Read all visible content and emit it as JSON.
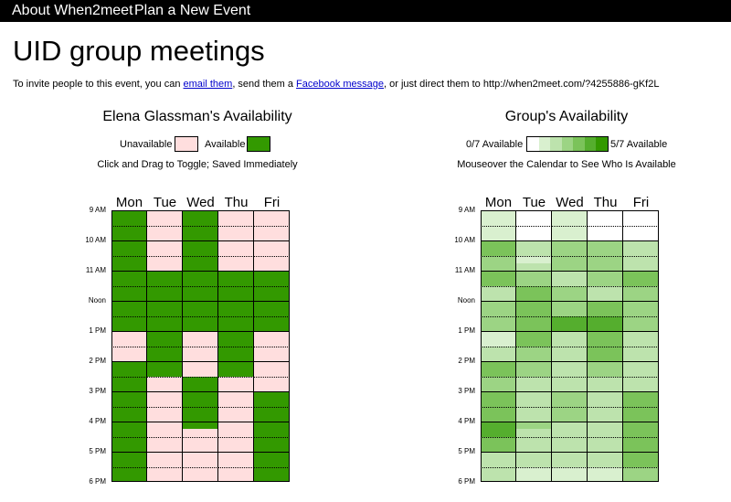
{
  "nav": {
    "about_label": "About When2meet",
    "plan_label": "Plan a New Event"
  },
  "event": {
    "title": "UID group meetings",
    "invite_prefix": "To invite people to this event, you can ",
    "email_link": "email them",
    "invite_mid": ", send them a ",
    "facebook_link": "Facebook message",
    "invite_suffix": ", or just direct them to http://when2meet.com/?4255886-gKf2L"
  },
  "colors": {
    "available": "#339900",
    "unavailable": "#ffdede",
    "group_scale": [
      "#ffffff",
      "#d9f0cf",
      "#bde3ad",
      "#9cd484",
      "#7bc35a",
      "#55ae2e",
      "#339900"
    ]
  },
  "my_availability": {
    "title": "Elena Glassman's Availability",
    "legend_unavailable": "Unavailable",
    "legend_available": "Available",
    "note": "Click and Drag to Toggle; Saved Immediately",
    "days": [
      "Mon",
      "Tue",
      "Wed",
      "Thu",
      "Fri"
    ],
    "time_labels": [
      "9 AM",
      "10 AM",
      "11 AM",
      "Noon",
      "1 PM",
      "2 PM",
      "3 PM",
      "4 PM",
      "5 PM",
      "6 PM"
    ],
    "grid": [
      [
        1,
        0,
        1,
        0,
        0
      ],
      [
        1,
        0,
        1,
        0,
        0
      ],
      [
        1,
        0,
        1,
        0,
        0
      ],
      [
        1,
        0,
        1,
        0,
        0
      ],
      [
        1,
        0,
        1,
        0,
        0
      ],
      [
        1,
        0,
        1,
        0,
        0
      ],
      [
        1,
        0,
        1,
        0,
        0
      ],
      [
        1,
        0,
        1,
        0,
        0
      ],
      [
        1,
        1,
        1,
        1,
        1
      ],
      [
        1,
        1,
        1,
        1,
        1
      ],
      [
        1,
        1,
        1,
        1,
        1
      ],
      [
        1,
        1,
        1,
        1,
        1
      ],
      [
        1,
        1,
        1,
        1,
        1
      ],
      [
        1,
        1,
        1,
        1,
        1
      ],
      [
        1,
        1,
        1,
        1,
        1
      ],
      [
        1,
        1,
        1,
        1,
        1
      ],
      [
        0,
        1,
        0,
        1,
        0
      ],
      [
        0,
        1,
        0,
        1,
        0
      ],
      [
        0,
        1,
        0,
        1,
        0
      ],
      [
        0,
        1,
        0,
        1,
        0
      ],
      [
        1,
        1,
        0,
        1,
        0
      ],
      [
        1,
        1,
        0,
        1,
        0
      ],
      [
        1,
        0,
        1,
        0,
        0
      ],
      [
        1,
        0,
        1,
        0,
        0
      ],
      [
        1,
        0,
        1,
        0,
        1
      ],
      [
        1,
        0,
        1,
        0,
        1
      ],
      [
        1,
        0,
        1,
        0,
        1
      ],
      [
        1,
        0,
        1,
        0,
        1
      ],
      [
        1,
        0,
        1,
        0,
        1
      ],
      [
        1,
        0,
        0,
        0,
        1
      ],
      [
        1,
        0,
        0,
        0,
        1
      ],
      [
        1,
        0,
        0,
        0,
        1
      ],
      [
        1,
        0,
        0,
        0,
        1
      ],
      [
        1,
        0,
        0,
        0,
        1
      ],
      [
        1,
        0,
        0,
        0,
        1
      ],
      [
        1,
        0,
        0,
        0,
        1
      ]
    ]
  },
  "group_availability": {
    "title": "Group's Availability",
    "legend_min": "0/7 Available",
    "legend_max": "5/7 Available",
    "note": "Mouseover the Calendar to See Who Is Available",
    "days": [
      "Mon",
      "Tue",
      "Wed",
      "Thu",
      "Fri"
    ],
    "time_labels": [
      "9 AM",
      "10 AM",
      "11 AM",
      "Noon",
      "1 PM",
      "2 PM",
      "3 PM",
      "4 PM",
      "5 PM",
      "6 PM"
    ],
    "grid": [
      [
        1,
        0,
        1,
        0,
        0
      ],
      [
        1,
        0,
        1,
        0,
        0
      ],
      [
        1,
        0,
        1,
        0,
        0
      ],
      [
        1,
        0,
        1,
        0,
        0
      ],
      [
        4,
        2,
        3,
        3,
        2
      ],
      [
        4,
        2,
        3,
        3,
        2
      ],
      [
        3,
        1,
        3,
        3,
        2
      ],
      [
        3,
        2,
        3,
        3,
        2
      ],
      [
        4,
        3,
        2,
        3,
        4
      ],
      [
        4,
        3,
        2,
        3,
        4
      ],
      [
        2,
        4,
        3,
        2,
        3
      ],
      [
        2,
        4,
        3,
        2,
        3
      ],
      [
        3,
        4,
        3,
        4,
        3
      ],
      [
        3,
        4,
        3,
        4,
        3
      ],
      [
        3,
        4,
        5,
        5,
        3
      ],
      [
        3,
        4,
        5,
        5,
        3
      ],
      [
        1,
        4,
        2,
        4,
        2
      ],
      [
        1,
        4,
        2,
        4,
        2
      ],
      [
        2,
        3,
        2,
        4,
        2
      ],
      [
        2,
        3,
        2,
        4,
        2
      ],
      [
        4,
        3,
        2,
        3,
        2
      ],
      [
        4,
        3,
        2,
        3,
        2
      ],
      [
        3,
        2,
        2,
        2,
        2
      ],
      [
        3,
        2,
        2,
        2,
        2
      ],
      [
        4,
        2,
        3,
        2,
        4
      ],
      [
        4,
        2,
        3,
        2,
        4
      ],
      [
        4,
        2,
        3,
        2,
        4
      ],
      [
        4,
        2,
        3,
        2,
        4
      ],
      [
        5,
        3,
        2,
        2,
        4
      ],
      [
        5,
        2,
        2,
        2,
        4
      ],
      [
        4,
        2,
        2,
        2,
        4
      ],
      [
        4,
        2,
        2,
        2,
        4
      ],
      [
        2,
        2,
        2,
        2,
        4
      ],
      [
        2,
        2,
        2,
        2,
        4
      ],
      [
        2,
        1,
        1,
        1,
        3
      ],
      [
        2,
        1,
        1,
        1,
        3
      ]
    ]
  }
}
